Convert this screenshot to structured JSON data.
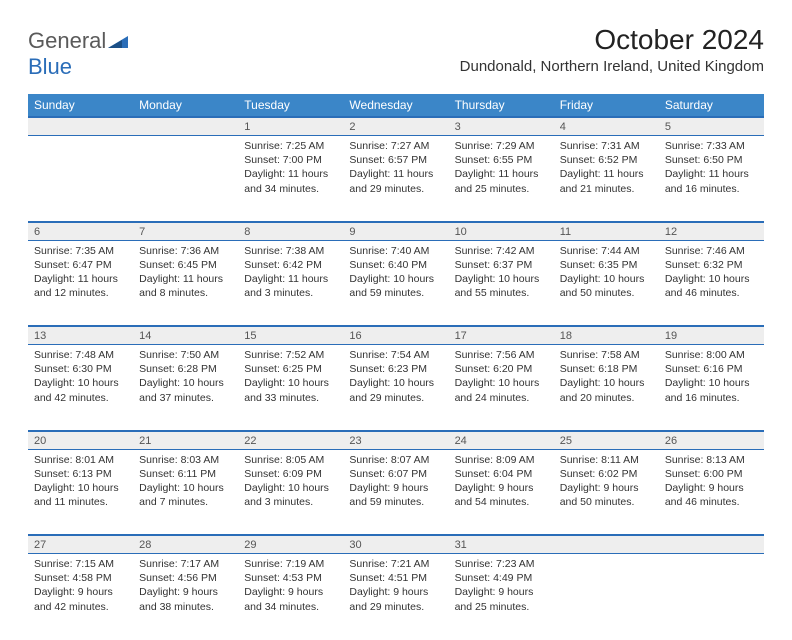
{
  "brand": {
    "part1": "General",
    "part2": "Blue"
  },
  "title": "October 2024",
  "location": "Dundonald, Northern Ireland, United Kingdom",
  "colors": {
    "header_bg": "#3b86c8",
    "header_text": "#ffffff",
    "daynum_bg": "#eeeeee",
    "border": "#2a6db8",
    "text": "#333333",
    "brand_gray": "#5a5a5a",
    "brand_blue": "#2a6db8"
  },
  "day_headers": [
    "Sunday",
    "Monday",
    "Tuesday",
    "Wednesday",
    "Thursday",
    "Friday",
    "Saturday"
  ],
  "weeks": [
    [
      null,
      null,
      {
        "n": "1",
        "sunrise": "7:25 AM",
        "sunset": "7:00 PM",
        "dl": "11 hours and 34 minutes."
      },
      {
        "n": "2",
        "sunrise": "7:27 AM",
        "sunset": "6:57 PM",
        "dl": "11 hours and 29 minutes."
      },
      {
        "n": "3",
        "sunrise": "7:29 AM",
        "sunset": "6:55 PM",
        "dl": "11 hours and 25 minutes."
      },
      {
        "n": "4",
        "sunrise": "7:31 AM",
        "sunset": "6:52 PM",
        "dl": "11 hours and 21 minutes."
      },
      {
        "n": "5",
        "sunrise": "7:33 AM",
        "sunset": "6:50 PM",
        "dl": "11 hours and 16 minutes."
      }
    ],
    [
      {
        "n": "6",
        "sunrise": "7:35 AM",
        "sunset": "6:47 PM",
        "dl": "11 hours and 12 minutes."
      },
      {
        "n": "7",
        "sunrise": "7:36 AM",
        "sunset": "6:45 PM",
        "dl": "11 hours and 8 minutes."
      },
      {
        "n": "8",
        "sunrise": "7:38 AM",
        "sunset": "6:42 PM",
        "dl": "11 hours and 3 minutes."
      },
      {
        "n": "9",
        "sunrise": "7:40 AM",
        "sunset": "6:40 PM",
        "dl": "10 hours and 59 minutes."
      },
      {
        "n": "10",
        "sunrise": "7:42 AM",
        "sunset": "6:37 PM",
        "dl": "10 hours and 55 minutes."
      },
      {
        "n": "11",
        "sunrise": "7:44 AM",
        "sunset": "6:35 PM",
        "dl": "10 hours and 50 minutes."
      },
      {
        "n": "12",
        "sunrise": "7:46 AM",
        "sunset": "6:32 PM",
        "dl": "10 hours and 46 minutes."
      }
    ],
    [
      {
        "n": "13",
        "sunrise": "7:48 AM",
        "sunset": "6:30 PM",
        "dl": "10 hours and 42 minutes."
      },
      {
        "n": "14",
        "sunrise": "7:50 AM",
        "sunset": "6:28 PM",
        "dl": "10 hours and 37 minutes."
      },
      {
        "n": "15",
        "sunrise": "7:52 AM",
        "sunset": "6:25 PM",
        "dl": "10 hours and 33 minutes."
      },
      {
        "n": "16",
        "sunrise": "7:54 AM",
        "sunset": "6:23 PM",
        "dl": "10 hours and 29 minutes."
      },
      {
        "n": "17",
        "sunrise": "7:56 AM",
        "sunset": "6:20 PM",
        "dl": "10 hours and 24 minutes."
      },
      {
        "n": "18",
        "sunrise": "7:58 AM",
        "sunset": "6:18 PM",
        "dl": "10 hours and 20 minutes."
      },
      {
        "n": "19",
        "sunrise": "8:00 AM",
        "sunset": "6:16 PM",
        "dl": "10 hours and 16 minutes."
      }
    ],
    [
      {
        "n": "20",
        "sunrise": "8:01 AM",
        "sunset": "6:13 PM",
        "dl": "10 hours and 11 minutes."
      },
      {
        "n": "21",
        "sunrise": "8:03 AM",
        "sunset": "6:11 PM",
        "dl": "10 hours and 7 minutes."
      },
      {
        "n": "22",
        "sunrise": "8:05 AM",
        "sunset": "6:09 PM",
        "dl": "10 hours and 3 minutes."
      },
      {
        "n": "23",
        "sunrise": "8:07 AM",
        "sunset": "6:07 PM",
        "dl": "9 hours and 59 minutes."
      },
      {
        "n": "24",
        "sunrise": "8:09 AM",
        "sunset": "6:04 PM",
        "dl": "9 hours and 54 minutes."
      },
      {
        "n": "25",
        "sunrise": "8:11 AM",
        "sunset": "6:02 PM",
        "dl": "9 hours and 50 minutes."
      },
      {
        "n": "26",
        "sunrise": "8:13 AM",
        "sunset": "6:00 PM",
        "dl": "9 hours and 46 minutes."
      }
    ],
    [
      {
        "n": "27",
        "sunrise": "7:15 AM",
        "sunset": "4:58 PM",
        "dl": "9 hours and 42 minutes."
      },
      {
        "n": "28",
        "sunrise": "7:17 AM",
        "sunset": "4:56 PM",
        "dl": "9 hours and 38 minutes."
      },
      {
        "n": "29",
        "sunrise": "7:19 AM",
        "sunset": "4:53 PM",
        "dl": "9 hours and 34 minutes."
      },
      {
        "n": "30",
        "sunrise": "7:21 AM",
        "sunset": "4:51 PM",
        "dl": "9 hours and 29 minutes."
      },
      {
        "n": "31",
        "sunrise": "7:23 AM",
        "sunset": "4:49 PM",
        "dl": "9 hours and 25 minutes."
      },
      null,
      null
    ]
  ],
  "labels": {
    "sunrise": "Sunrise:",
    "sunset": "Sunset:",
    "daylight": "Daylight:"
  }
}
